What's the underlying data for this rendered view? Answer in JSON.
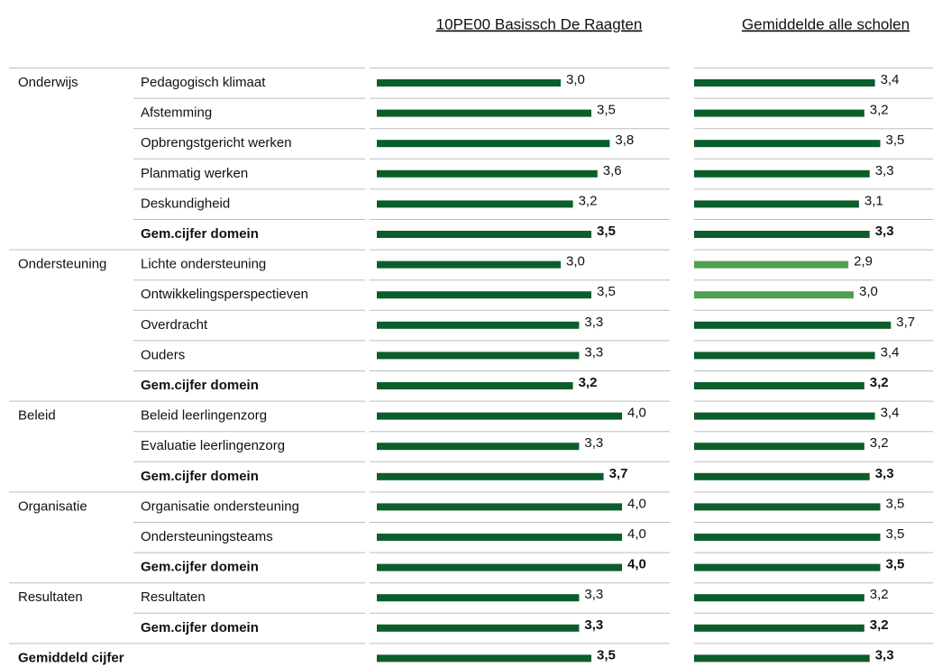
{
  "chart_data": {
    "type": "bar",
    "orientation": "horizontal",
    "domains": [
      "Onderwijs",
      null,
      null,
      null,
      null,
      null,
      "Ondersteuning",
      null,
      null,
      null,
      null,
      "Beleid",
      null,
      null,
      "Organisatie",
      null,
      null,
      "Resultaten",
      null,
      "Gemiddeld cijfer"
    ],
    "categories": [
      "Pedagogisch klimaat",
      "Afstemming",
      "Opbrengstgericht werken",
      "Planmatig werken",
      "Deskundigheid",
      "Gem.cijfer domein",
      "Lichte ondersteuning",
      "Ontwikkelingsperspectieven",
      "Overdracht",
      "Ouders",
      "Gem.cijfer domein",
      "Beleid leerlingenzorg",
      "Evaluatie leerlingenzorg",
      "Gem.cijfer domein",
      "Organisatie ondersteuning",
      "Ondersteuningsteams",
      "Gem.cijfer domein",
      "Resultaten",
      "Gem.cijfer domein",
      null
    ],
    "summary": [
      false,
      false,
      false,
      false,
      false,
      true,
      false,
      false,
      false,
      false,
      true,
      false,
      false,
      true,
      false,
      false,
      true,
      false,
      true,
      true
    ],
    "series": [
      {
        "name": "10PE00 Basissch De Raagten",
        "color": "#0b5e2c",
        "xlim": [
          0,
          4
        ],
        "values": [
          3.0,
          3.5,
          3.8,
          3.6,
          3.2,
          3.5,
          3.0,
          3.5,
          3.3,
          3.3,
          3.2,
          4.0,
          3.3,
          3.7,
          4.0,
          4.0,
          4.0,
          3.3,
          3.3,
          3.5
        ],
        "value_labels": [
          "3,0",
          "3,5",
          "3,8",
          "3,6",
          "3,2",
          "3,5",
          "3,0",
          "3,5",
          "3,3",
          "3,3",
          "3,2",
          "4,0",
          "3,3",
          "3,7",
          "4,0",
          "4,0",
          "4,0",
          "3,3",
          "3,3",
          "3,5"
        ]
      },
      {
        "name": "Gemiddelde alle scholen",
        "color": "#0b5e2c",
        "xlim": [
          0,
          4
        ],
        "colors": [
          "#0b5e2c",
          "#0b5e2c",
          "#0b5e2c",
          "#0b5e2c",
          "#0b5e2c",
          "#0b5e2c",
          "#4fa04f",
          "#4fa04f",
          "#0b5e2c",
          "#0b5e2c",
          "#0b5e2c",
          "#0b5e2c",
          "#0b5e2c",
          "#0b5e2c",
          "#0b5e2c",
          "#0b5e2c",
          "#0b5e2c",
          "#0b5e2c",
          "#0b5e2c",
          "#0b5e2c"
        ],
        "values": [
          3.4,
          3.2,
          3.5,
          3.3,
          3.1,
          3.3,
          2.9,
          3.0,
          3.7,
          3.4,
          3.2,
          3.4,
          3.2,
          3.3,
          3.5,
          3.5,
          3.5,
          3.2,
          3.2,
          3.3
        ],
        "value_labels": [
          "3,4",
          "3,2",
          "3,5",
          "3,3",
          "3,1",
          "3,3",
          "2,9",
          "3,0",
          "3,7",
          "3,4",
          "3,2",
          "3,4",
          "3,2",
          "3,3",
          "3,5",
          "3,5",
          "3,5",
          "3,2",
          "3,2",
          "3,3"
        ]
      }
    ]
  }
}
